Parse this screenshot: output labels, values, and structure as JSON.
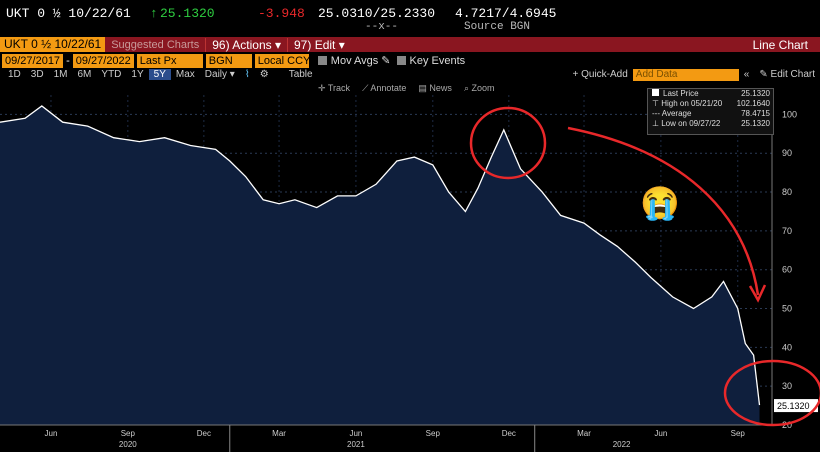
{
  "header": {
    "security": "UKT 0 ½ 10/22/61",
    "up_arrow": "↑",
    "last_price": "25.1320",
    "change": "-3.948",
    "bid_ask": "25.0310/25.2330",
    "bid_ask_sub": "--x--",
    "yield": "4.7217/4.6945",
    "source": "Source BGN"
  },
  "titlebar": {
    "security": "UKT 0 ½ 10/22/61",
    "suggested": "Suggested Charts",
    "actions_num": "96)",
    "actions": "Actions",
    "edit_num": "97)",
    "edit": "Edit",
    "chart_type": "Line Chart"
  },
  "inputs": {
    "start_date": "09/27/2017",
    "end_date": "09/27/2022",
    "field": "Last Px",
    "source": "BGN",
    "currency": "Local CCY",
    "mov_avgs": "Mov Avgs",
    "key_events": "Key Events"
  },
  "toolbar": {
    "periods": [
      "1D",
      "3D",
      "1M",
      "6M",
      "YTD",
      "1Y",
      "5Y",
      "Max"
    ],
    "selected_period": "5Y",
    "frequency": "Daily",
    "table": "Table",
    "quick_add": "+ Quick-Add",
    "add_data_placeholder": "Add Data",
    "edit_chart": "Edit Chart"
  },
  "subtoolbar": {
    "items": [
      "Track",
      "Annotate",
      "News",
      "Zoom"
    ]
  },
  "legend": {
    "last_price_label": "Last Price",
    "last_price": "25.1320",
    "high_label": "High on 05/21/20",
    "high": "102.1640",
    "avg_label": "Average",
    "avg": "78.4715",
    "low_label": "Low on 09/27/22",
    "low": "25.1320"
  },
  "colors": {
    "accent": "#f39a12",
    "titlebar": "#8a1620",
    "line": "#ffffff",
    "fill": "#0f1f3d",
    "annotation": "#e8282a"
  },
  "annotation": {
    "emoji": "😭"
  },
  "chart_data": {
    "type": "area",
    "title": "",
    "xlabel": "",
    "ylabel": "",
    "ylim": [
      20,
      105
    ],
    "yticks": [
      20,
      30,
      40,
      50,
      60,
      70,
      80,
      90,
      100
    ],
    "last_value_label": "25.1320",
    "xticks": [
      {
        "x": "2020-06-01",
        "label": "Jun"
      },
      {
        "x": "2020-09-01",
        "label": "Sep"
      },
      {
        "x": "2020-12-01",
        "label": "Dec"
      },
      {
        "x": "2021-03-01",
        "label": "Mar"
      },
      {
        "x": "2021-06-01",
        "label": "Jun"
      },
      {
        "x": "2021-09-01",
        "label": "Sep"
      },
      {
        "x": "2021-12-01",
        "label": "Dec"
      },
      {
        "x": "2022-03-01",
        "label": "Mar"
      },
      {
        "x": "2022-06-01",
        "label": "Jun"
      },
      {
        "x": "2022-09-01",
        "label": "Sep"
      }
    ],
    "years": [
      {
        "x": "2020-09-01",
        "label": "2020"
      },
      {
        "x": "2021-06-01",
        "label": "2021"
      },
      {
        "x": "2022-04-15",
        "label": "2022"
      }
    ],
    "series": [
      {
        "x": [
          "2020-04-01",
          "2020-05-01",
          "2020-05-21",
          "2020-06-15",
          "2020-07-15",
          "2020-08-15",
          "2020-09-15",
          "2020-10-15",
          "2020-11-15",
          "2020-12-15",
          "2021-01-01",
          "2021-01-20",
          "2021-02-10",
          "2021-03-01",
          "2021-03-20",
          "2021-04-15",
          "2021-05-10",
          "2021-06-01",
          "2021-06-25",
          "2021-07-20",
          "2021-08-10",
          "2021-09-01",
          "2021-09-20",
          "2021-10-10",
          "2021-10-25",
          "2021-11-10",
          "2021-11-25",
          "2021-12-15",
          "2022-01-10",
          "2022-02-01",
          "2022-03-01",
          "2022-03-20",
          "2022-04-10",
          "2022-05-01",
          "2022-05-20",
          "2022-06-15",
          "2022-07-10",
          "2022-08-01",
          "2022-08-15",
          "2022-09-01",
          "2022-09-10",
          "2022-09-20",
          "2022-09-27"
        ],
        "values": [
          98,
          99,
          102.164,
          98,
          97,
          94,
          93,
          94,
          92,
          91,
          88,
          84,
          78,
          77,
          78,
          76,
          79,
          79,
          82,
          88,
          89,
          87,
          80,
          75,
          81,
          89,
          96,
          86,
          80,
          74,
          72,
          69,
          66,
          62,
          58,
          53,
          50,
          53,
          57,
          50,
          41,
          38,
          25.132
        ]
      }
    ]
  }
}
